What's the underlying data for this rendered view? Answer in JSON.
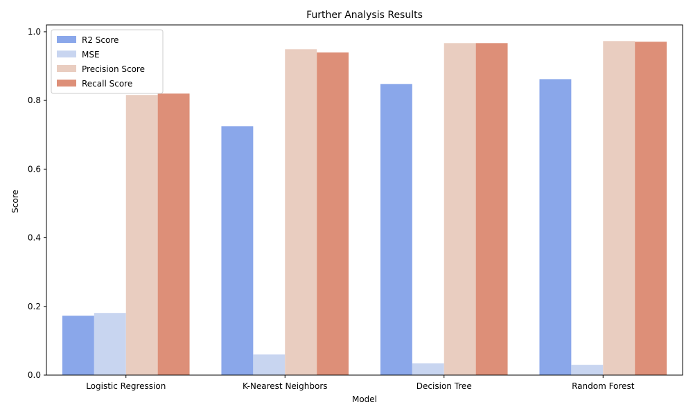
{
  "chart_data": {
    "type": "bar",
    "title": "Further Analysis Results",
    "xlabel": "Model",
    "ylabel": "Score",
    "categories": [
      "Logistic Regression",
      "K-Nearest Neighbors",
      "Decision Tree",
      "Random Forest"
    ],
    "series": [
      {
        "name": "R2 Score",
        "color": "#8aa7ea",
        "values": [
          0.173,
          0.725,
          0.848,
          0.862
        ]
      },
      {
        "name": "MSE",
        "color": "#c8d5f0",
        "values": [
          0.181,
          0.06,
          0.034,
          0.03
        ]
      },
      {
        "name": "Precision Score",
        "color": "#e9cdc0",
        "values": [
          0.816,
          0.949,
          0.967,
          0.973
        ]
      },
      {
        "name": "Recall Score",
        "color": "#dd8f78",
        "values": [
          0.82,
          0.94,
          0.967,
          0.971
        ]
      }
    ],
    "ylim": [
      0,
      1.02
    ],
    "yticks": [
      "0.0",
      "0.2",
      "0.4",
      "0.6",
      "0.8",
      "1.0"
    ],
    "legend": "upper-left",
    "grid": false
  }
}
